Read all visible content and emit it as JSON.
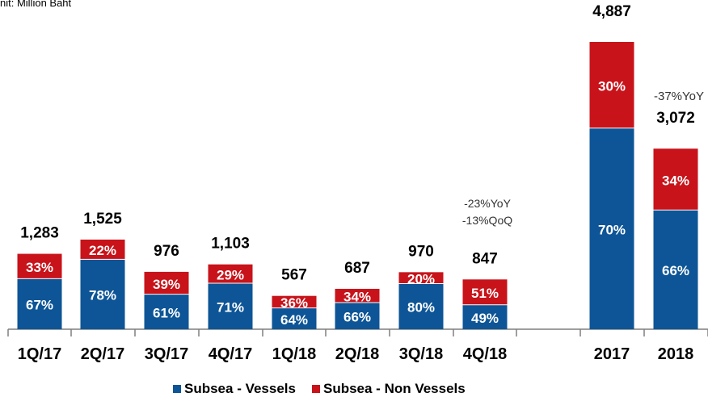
{
  "unit_label": "nit: Million Baht",
  "colors": {
    "vessels": "#0d5596",
    "non_vessels": "#c8131a",
    "axis": "#7f7f7f"
  },
  "chart_data": {
    "type": "bar",
    "stacked": true,
    "categories": [
      "1Q/17",
      "2Q/17",
      "3Q/17",
      "4Q/17",
      "1Q/18",
      "2Q/18",
      "3Q/18",
      "4Q/18",
      "2017",
      "2018"
    ],
    "totals": [
      1283,
      1525,
      976,
      1103,
      567,
      687,
      970,
      847,
      4887,
      3072
    ],
    "total_labels": [
      "1,283",
      "1,525",
      "976",
      "1,103",
      "567",
      "687",
      "970",
      "847",
      "4,887",
      "3,072"
    ],
    "series": [
      {
        "name": "Subsea - Vessels",
        "percent_labels": [
          "67%",
          "78%",
          "61%",
          "71%",
          "64%",
          "66%",
          "80%",
          "49%",
          "70%",
          "66%"
        ],
        "share": [
          0.67,
          0.78,
          0.61,
          0.71,
          0.64,
          0.66,
          0.8,
          0.49,
          0.7,
          0.66
        ]
      },
      {
        "name": "Subsea - Non Vessels",
        "percent_labels": [
          "33%",
          "22%",
          "39%",
          "29%",
          "36%",
          "34%",
          "20%",
          "51%",
          "30%",
          "34%"
        ],
        "share": [
          0.33,
          0.22,
          0.39,
          0.29,
          0.36,
          0.34,
          0.2,
          0.51,
          0.3,
          0.34
        ]
      }
    ],
    "annotations": [
      {
        "category": "4Q/18",
        "lines": [
          "-23%YoY",
          "-13%QoQ"
        ]
      },
      {
        "category": "2018",
        "lines": [
          "-37%YoY"
        ]
      }
    ],
    "legend_position": "bottom",
    "grid": false
  }
}
